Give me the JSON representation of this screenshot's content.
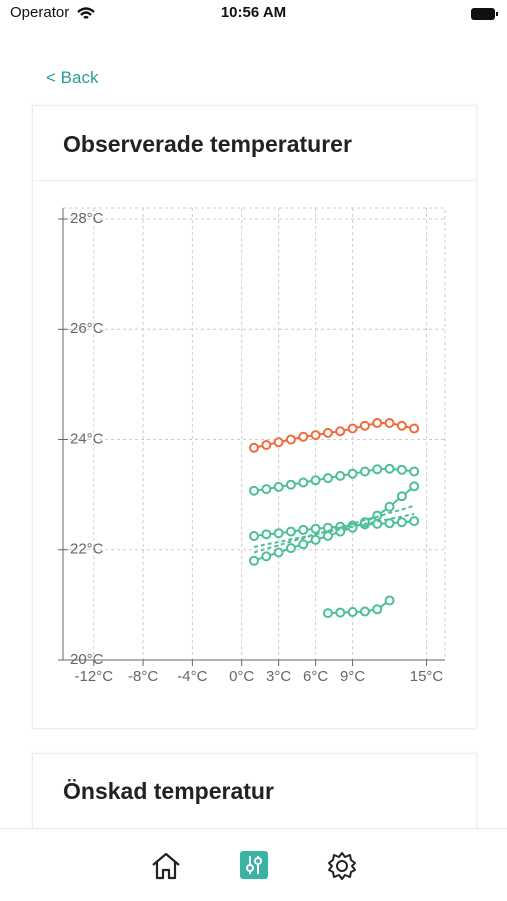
{
  "status": {
    "carrier": "Operator",
    "time": "10:56 AM"
  },
  "nav": {
    "back": "< Back"
  },
  "cards": [
    {
      "title": "Observerade temperaturer"
    },
    {
      "title": "Önskad temperatur"
    }
  ],
  "chart_data": {
    "type": "line",
    "grid": true,
    "xlim": [
      -14.5,
      16.5
    ],
    "ylim": [
      20,
      28.2
    ],
    "xticks": [
      {
        "value": -12,
        "label": "-12°C"
      },
      {
        "value": -8,
        "label": "-8°C"
      },
      {
        "value": -4,
        "label": "-4°C"
      },
      {
        "value": 0,
        "label": "0°C"
      },
      {
        "value": 3,
        "label": "3°C"
      },
      {
        "value": 6,
        "label": "6°C"
      },
      {
        "value": 9,
        "label": "9°C"
      },
      {
        "value": 15,
        "label": "15°C"
      }
    ],
    "yticks": [
      {
        "value": 20,
        "label": "20°C"
      },
      {
        "value": 22,
        "label": "22°C"
      },
      {
        "value": 24,
        "label": "24°C"
      },
      {
        "value": 26,
        "label": "26°C"
      },
      {
        "value": 28,
        "label": "28°C"
      }
    ],
    "series": [
      {
        "color": "#f26b3a",
        "marker": true,
        "x": [
          1,
          2,
          3,
          4,
          5,
          6,
          7,
          8,
          9,
          10,
          11,
          12,
          13,
          14
        ],
        "values": [
          23.85,
          23.9,
          23.95,
          24.0,
          24.05,
          24.08,
          24.12,
          24.15,
          24.2,
          24.25,
          24.3,
          24.3,
          24.25,
          24.2
        ]
      },
      {
        "color": "#4cbf98",
        "marker": true,
        "x": [
          1,
          2,
          3,
          4,
          5,
          6,
          7,
          8,
          9,
          10,
          11,
          12,
          13,
          14
        ],
        "values": [
          23.07,
          23.1,
          23.14,
          23.18,
          23.22,
          23.26,
          23.3,
          23.34,
          23.38,
          23.42,
          23.46,
          23.47,
          23.45,
          23.42
        ]
      },
      {
        "color": "#4cbf98",
        "marker": true,
        "x": [
          1,
          2,
          3,
          4,
          5,
          6,
          7,
          8,
          9,
          10,
          11,
          12,
          13,
          14
        ],
        "values": [
          22.25,
          22.28,
          22.3,
          22.33,
          22.36,
          22.38,
          22.4,
          22.42,
          22.44,
          22.46,
          22.47,
          22.48,
          22.5,
          22.52
        ]
      },
      {
        "color": "#4cbf98",
        "marker": true,
        "x": [
          1,
          2,
          3,
          4,
          5,
          6,
          7,
          8,
          9,
          10,
          11,
          12,
          13,
          14
        ],
        "values": [
          21.8,
          21.88,
          21.95,
          22.03,
          22.1,
          22.18,
          22.25,
          22.33,
          22.4,
          22.5,
          22.62,
          22.78,
          22.97,
          23.15
        ]
      },
      {
        "color": "#4cbf98",
        "marker": false,
        "dashed": true,
        "x": [
          1,
          2,
          3,
          4,
          5,
          6,
          7,
          8,
          9,
          10,
          11,
          12,
          13,
          14
        ],
        "values": [
          21.95,
          22.02,
          22.08,
          22.15,
          22.21,
          22.28,
          22.34,
          22.41,
          22.47,
          22.54,
          22.6,
          22.67,
          22.73,
          22.8
        ]
      },
      {
        "color": "#4cbf98",
        "marker": false,
        "dashed": true,
        "x": [
          1,
          2,
          3,
          4,
          5,
          6,
          7,
          8,
          9,
          10,
          11,
          12,
          13,
          14
        ],
        "values": [
          22.05,
          22.1,
          22.14,
          22.19,
          22.23,
          22.28,
          22.33,
          22.37,
          22.42,
          22.47,
          22.51,
          22.56,
          22.6,
          22.65
        ]
      },
      {
        "color": "#4cbf98",
        "marker": true,
        "x": [
          7,
          8,
          9,
          10,
          11,
          12
        ],
        "values": [
          20.85,
          20.86,
          20.87,
          20.88,
          20.92,
          21.08
        ]
      }
    ]
  }
}
